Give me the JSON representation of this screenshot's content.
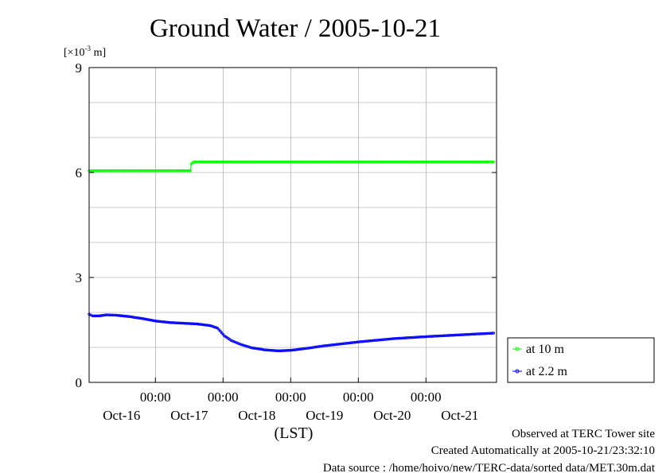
{
  "chart_data": {
    "type": "line",
    "title": "Ground Water / 2005-10-21",
    "ylabel": "[×10-3 m]",
    "ylabel_base": "[×10",
    "ylabel_exp": "-3",
    "ylabel_unit": " m]",
    "xlabel": "(LST)",
    "ylim": [
      0,
      9
    ],
    "y_ticks": [
      "0",
      "3",
      "6",
      "9"
    ],
    "x_time_labels": [
      "00:00",
      "00:00",
      "00:00",
      "00:00",
      "00:00"
    ],
    "x_date_labels": [
      "Oct-16",
      "Oct-17",
      "Oct-18",
      "Oct-19",
      "Oct-20",
      "Oct-21"
    ],
    "grid": true,
    "legend_position": "right",
    "series": [
      {
        "name": "at 10 m",
        "color": "#00ff00",
        "points": [
          [
            0.0,
            6.05
          ],
          [
            0.5,
            6.05
          ],
          [
            1.0,
            6.05
          ],
          [
            1.3,
            6.05
          ],
          [
            1.5,
            6.05
          ],
          [
            1.51,
            6.25
          ],
          [
            1.55,
            6.3
          ],
          [
            2.0,
            6.3
          ],
          [
            2.5,
            6.3
          ],
          [
            3.0,
            6.3
          ],
          [
            3.5,
            6.3
          ],
          [
            4.0,
            6.3
          ],
          [
            4.5,
            6.3
          ],
          [
            5.0,
            6.3
          ],
          [
            5.5,
            6.3
          ],
          [
            6.0,
            6.3
          ]
        ]
      },
      {
        "name": "at 2.2 m",
        "color": "#0000ff",
        "points": [
          [
            0.0,
            1.95
          ],
          [
            0.05,
            1.9
          ],
          [
            0.15,
            1.9
          ],
          [
            0.25,
            1.93
          ],
          [
            0.4,
            1.92
          ],
          [
            0.6,
            1.88
          ],
          [
            0.8,
            1.82
          ],
          [
            1.0,
            1.75
          ],
          [
            1.2,
            1.71
          ],
          [
            1.4,
            1.69
          ],
          [
            1.6,
            1.67
          ],
          [
            1.8,
            1.62
          ],
          [
            1.9,
            1.55
          ],
          [
            2.0,
            1.33
          ],
          [
            2.1,
            1.2
          ],
          [
            2.25,
            1.08
          ],
          [
            2.4,
            0.99
          ],
          [
            2.6,
            0.93
          ],
          [
            2.8,
            0.9
          ],
          [
            3.0,
            0.92
          ],
          [
            3.2,
            0.97
          ],
          [
            3.5,
            1.05
          ],
          [
            4.0,
            1.16
          ],
          [
            4.5,
            1.25
          ],
          [
            5.0,
            1.31
          ],
          [
            5.5,
            1.36
          ],
          [
            6.0,
            1.41
          ]
        ]
      }
    ]
  },
  "footer": {
    "line1": "Observed at TERC Tower site",
    "line2": "Created Automatically at 2005-10-21/23:32:10",
    "line3": "Data source : /home/hoivo/new/TERC-data/sorted data/MET.30m.dat"
  }
}
